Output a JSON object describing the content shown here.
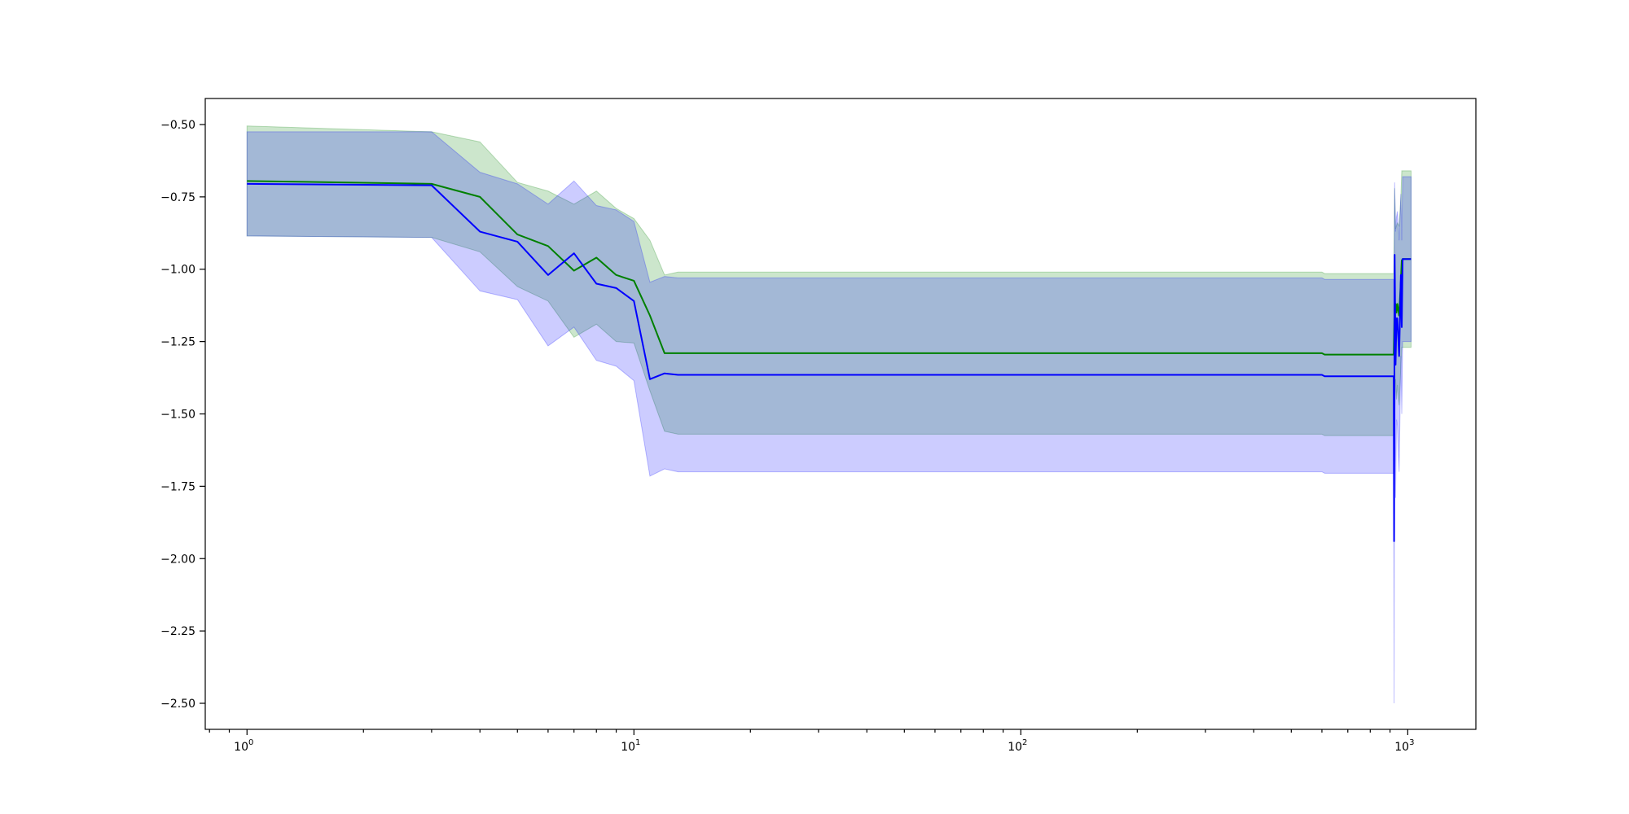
{
  "chart_data": {
    "type": "line",
    "title": "",
    "xlabel": "",
    "ylabel": "",
    "xscale": "log",
    "xlim": [
      0.78,
      1500
    ],
    "ylim": [
      -2.59,
      -0.41
    ],
    "grid": false,
    "legend": "none",
    "x_ticks": [
      {
        "value": 1,
        "label": "10",
        "exp": "0"
      },
      {
        "value": 10,
        "label": "10",
        "exp": "1"
      },
      {
        "value": 100,
        "label": "10",
        "exp": "2"
      },
      {
        "value": 1000,
        "label": "10",
        "exp": "3"
      }
    ],
    "y_ticks": [
      {
        "value": -0.5,
        "label": "−0.50"
      },
      {
        "value": -0.75,
        "label": "−0.75"
      },
      {
        "value": -1.0,
        "label": "−1.00"
      },
      {
        "value": -1.25,
        "label": "−1.25"
      },
      {
        "value": -1.5,
        "label": "−1.50"
      },
      {
        "value": -1.75,
        "label": "−1.75"
      },
      {
        "value": -2.0,
        "label": "−2.00"
      },
      {
        "value": -2.25,
        "label": "−2.25"
      },
      {
        "value": -2.5,
        "label": "−2.50"
      }
    ],
    "series": [
      {
        "color": "#008000",
        "band_color": "#008000",
        "band_opacity": 0.2,
        "x": [
          1,
          3,
          4,
          5,
          6,
          7,
          8,
          9,
          10,
          11,
          12,
          13,
          600,
          610,
          920,
          925,
          930,
          935,
          940,
          950,
          960,
          965,
          970,
          1000,
          1020
        ],
        "y": [
          -0.695,
          -0.705,
          -0.75,
          -0.88,
          -0.92,
          -1.005,
          -0.96,
          -1.02,
          -1.04,
          -1.16,
          -1.29,
          -1.29,
          -1.29,
          -1.295,
          -1.295,
          -1.12,
          -1.12,
          -1.15,
          -1.12,
          -1.16,
          -1.04,
          -0.97,
          -0.965,
          -0.965,
          -0.965
        ],
        "y_upper": [
          -0.505,
          -0.525,
          -0.56,
          -0.7,
          -0.73,
          -0.775,
          -0.73,
          -0.79,
          -0.825,
          -0.9,
          -1.02,
          -1.01,
          -1.01,
          -1.015,
          -1.015,
          -0.72,
          -0.86,
          -0.85,
          -0.84,
          -0.85,
          -0.75,
          -0.66,
          -0.66,
          -0.66,
          -0.66
        ],
        "y_lower": [
          -0.885,
          -0.89,
          -0.94,
          -1.06,
          -1.11,
          -1.235,
          -1.19,
          -1.25,
          -1.255,
          -1.42,
          -1.56,
          -1.57,
          -1.57,
          -1.575,
          -1.575,
          -1.52,
          -1.38,
          -1.45,
          -1.4,
          -1.47,
          -1.33,
          -1.27,
          -1.27,
          -1.27,
          -1.27
        ]
      },
      {
        "color": "#0000ff",
        "band_color": "#0000ff",
        "band_opacity": 0.2,
        "x": [
          1,
          3,
          4,
          5,
          6,
          7,
          8,
          9,
          10,
          11,
          12,
          13,
          600,
          610,
          920,
          922,
          925,
          930,
          935,
          940,
          950,
          960,
          965,
          970,
          1000,
          1020
        ],
        "y": [
          -0.705,
          -0.71,
          -0.87,
          -0.905,
          -1.02,
          -0.945,
          -1.05,
          -1.065,
          -1.11,
          -1.38,
          -1.36,
          -1.365,
          -1.365,
          -1.37,
          -1.37,
          -1.94,
          -0.95,
          -1.33,
          -1.17,
          -1.17,
          -1.3,
          -1.02,
          -1.2,
          -0.965,
          -0.965,
          -0.965
        ],
        "y_upper": [
          -0.525,
          -0.525,
          -0.665,
          -0.705,
          -0.775,
          -0.695,
          -0.78,
          -0.795,
          -0.835,
          -1.045,
          -1.025,
          -1.03,
          -1.03,
          -1.035,
          -1.035,
          -1.35,
          -0.7,
          -0.87,
          -0.82,
          -0.8,
          -0.9,
          -0.74,
          -0.9,
          -0.68,
          -0.68,
          -0.68
        ],
        "y_lower": [
          -0.885,
          -0.89,
          -1.075,
          -1.105,
          -1.265,
          -1.2,
          -1.315,
          -1.335,
          -1.385,
          -1.715,
          -1.69,
          -1.7,
          -1.7,
          -1.705,
          -1.705,
          -2.5,
          -1.2,
          -1.79,
          -1.52,
          -1.54,
          -1.7,
          -1.3,
          -1.5,
          -1.25,
          -1.25,
          -1.25
        ]
      }
    ]
  }
}
